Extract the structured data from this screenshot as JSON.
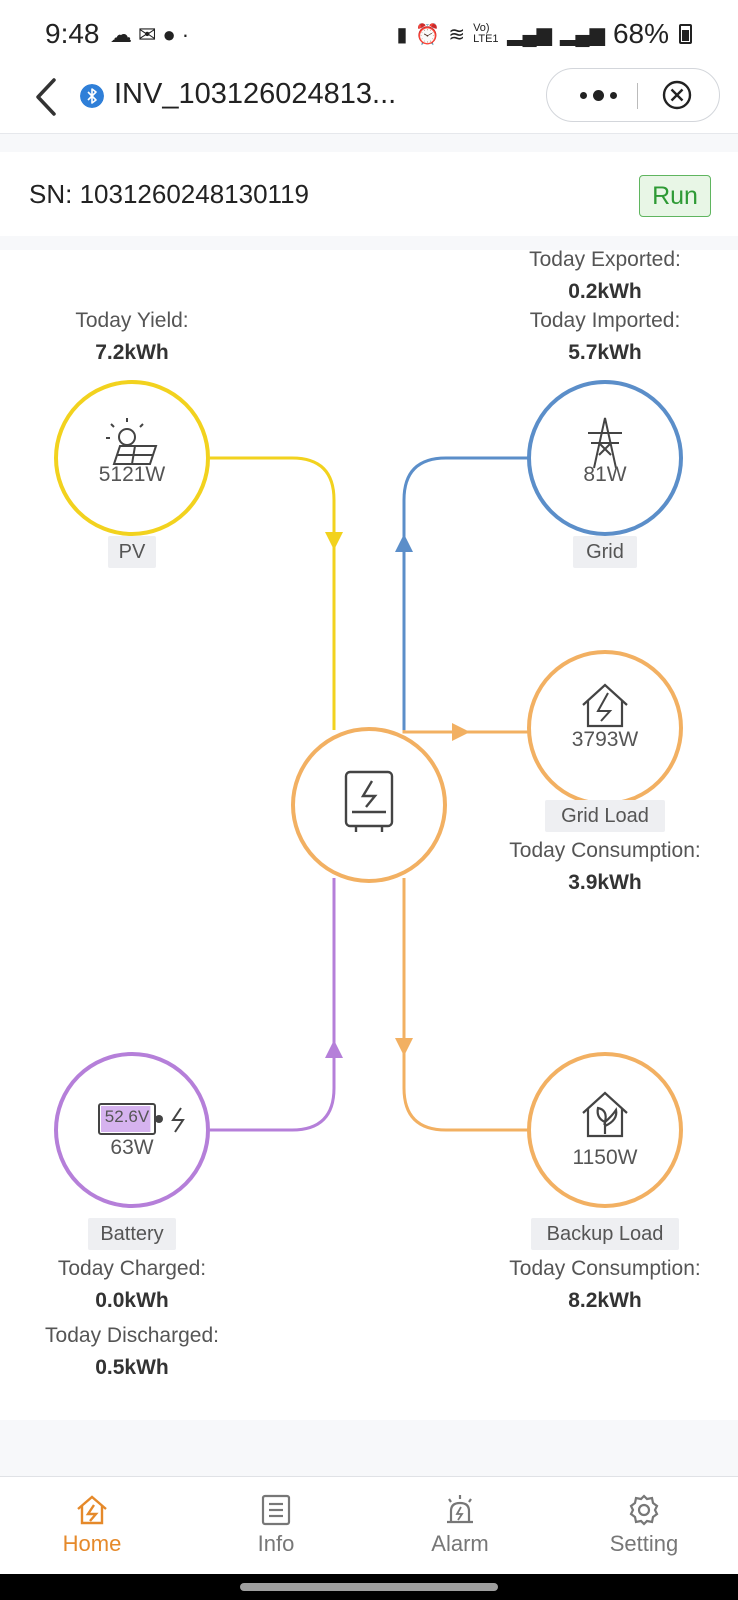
{
  "status_bar": {
    "time": "9:48",
    "left_icons": [
      "cloud-icon",
      "chat-icon",
      "message-icon",
      "dot-icon"
    ],
    "network": "Vo) LTE1",
    "battery_percent": "68%"
  },
  "header": {
    "title": "INV_103126024813...",
    "bluetooth_icon": "bluetooth-icon"
  },
  "device": {
    "sn": "SN: 1031260248130119",
    "status": "Run"
  },
  "flow": {
    "pv": {
      "label": "PV",
      "power": "5121W",
      "stat_label": "Today Yield:",
      "stat_value": "7.2kWh",
      "color": "#f2d21e"
    },
    "grid": {
      "label": "Grid",
      "power": "81W",
      "exported_label": "Today Exported:",
      "exported_value": "0.2kWh",
      "imported_label": "Today Imported:",
      "imported_value": "5.7kWh",
      "color": "#5b8ec9"
    },
    "grid_load": {
      "label": "Grid Load",
      "power": "3793W",
      "stat_label": "Today Consumption:",
      "stat_value": "3.9kWh",
      "color": "#f2b062"
    },
    "battery": {
      "label": "Battery",
      "voltage": "52.6V",
      "power": "63W",
      "soc_fraction": 0.95,
      "charged_label": "Today Charged:",
      "charged_value": "0.0kWh",
      "discharged_label": "Today Discharged:",
      "discharged_value": "0.5kWh",
      "color": "#b57fd9"
    },
    "backup_load": {
      "label": "Backup Load",
      "power": "1150W",
      "stat_label": "Today Consumption:",
      "stat_value": "8.2kWh",
      "color": "#f2b062"
    },
    "inverter": {
      "color": "#f2b062"
    }
  },
  "nav": {
    "items": [
      {
        "label": "Home",
        "icon": "home-energy-icon",
        "active": true
      },
      {
        "label": "Info",
        "icon": "info-doc-icon",
        "active": false
      },
      {
        "label": "Alarm",
        "icon": "alarm-siren-icon",
        "active": false
      },
      {
        "label": "Setting",
        "icon": "gear-icon",
        "active": false
      }
    ],
    "active_color": "#e5892a"
  }
}
